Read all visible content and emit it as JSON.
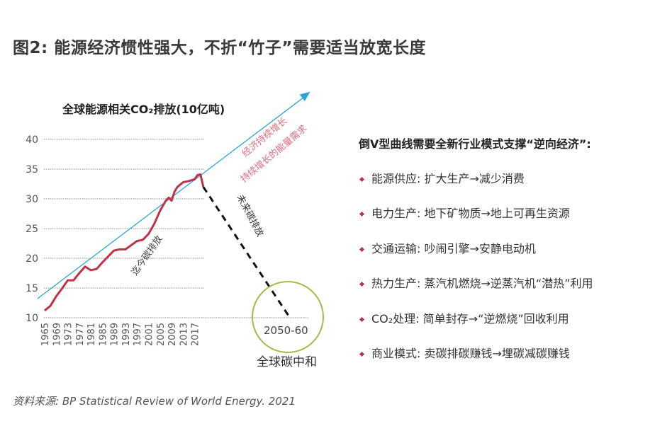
{
  "title": "图2: 能源经济惯性强大，不折“竹子”需要适当放宽长度",
  "source": "资料来源: BP Statistical Review of World Energy. 2021",
  "colors": {
    "history": "#c0324a",
    "trend": "#2aa6d4",
    "projection": "#111111",
    "circle": "#a6b94a",
    "annotation_pink": "#e06a80"
  },
  "chart_data": {
    "type": "line",
    "title": "全球能源相关CO₂排放(10亿吨)",
    "ylim": [
      10,
      40
    ],
    "yticks": [
      "10",
      "15",
      "20",
      "25",
      "30",
      "35",
      "40"
    ],
    "xticks": [
      "1965",
      "1969",
      "1973",
      "1977",
      "1981",
      "1985",
      "1989",
      "1993",
      "1997",
      "2001",
      "2005",
      "2009",
      "2013",
      "2017"
    ],
    "grid": true,
    "series": [
      {
        "x": [
          1965,
          1967,
          1969,
          1971,
          1973,
          1975,
          1977,
          1979,
          1981,
          1983,
          1985,
          1987,
          1989,
          1991,
          1993,
          1995,
          1997,
          1999,
          2001,
          2003,
          2005,
          2007,
          2008,
          2009,
          2010,
          2011,
          2013,
          2015,
          2017,
          2018,
          2019,
          2020
        ],
        "values": [
          11.2,
          12.0,
          13.6,
          14.9,
          16.3,
          16.3,
          17.5,
          18.6,
          18.0,
          18.2,
          19.3,
          20.3,
          21.3,
          21.5,
          21.5,
          22.2,
          22.9,
          23.1,
          24.1,
          25.8,
          28.0,
          29.7,
          30.2,
          29.7,
          31.2,
          32.0,
          32.8,
          33.0,
          33.3,
          34.0,
          34.1,
          32.0
        ]
      }
    ],
    "trend_line": {
      "start": [
        1962.5,
        13.2
      ],
      "end": [
        2057,
        48
      ]
    },
    "projection": {
      "start": [
        2020,
        32.0
      ],
      "end": [
        2050,
        10
      ]
    },
    "annotations": {
      "trend1": "经济持续增长",
      "trend2": "持续增长的能量需求",
      "history": "迄今碳排放",
      "future": "未来碳排放",
      "target_period": "2050-60",
      "target": "全球碳中和"
    }
  },
  "panel": {
    "heading": "倒V型曲线需要全新行业模式支撑“逆向经济”:",
    "items": [
      "能源供应: 扩大生产→减少消费",
      "电力生产: 地下矿物质→地上可再生资源",
      "交通运输: 吵闹引擎→安静电动机",
      "热力生产: 蒸汽机燃烧→逆蒸汽机“潜热”利用",
      "CO₂处理: 简单封存→“逆燃烧”回收利用",
      "商业模式: 卖碳排碳赚钱→埋碳减碳赚钱"
    ]
  }
}
